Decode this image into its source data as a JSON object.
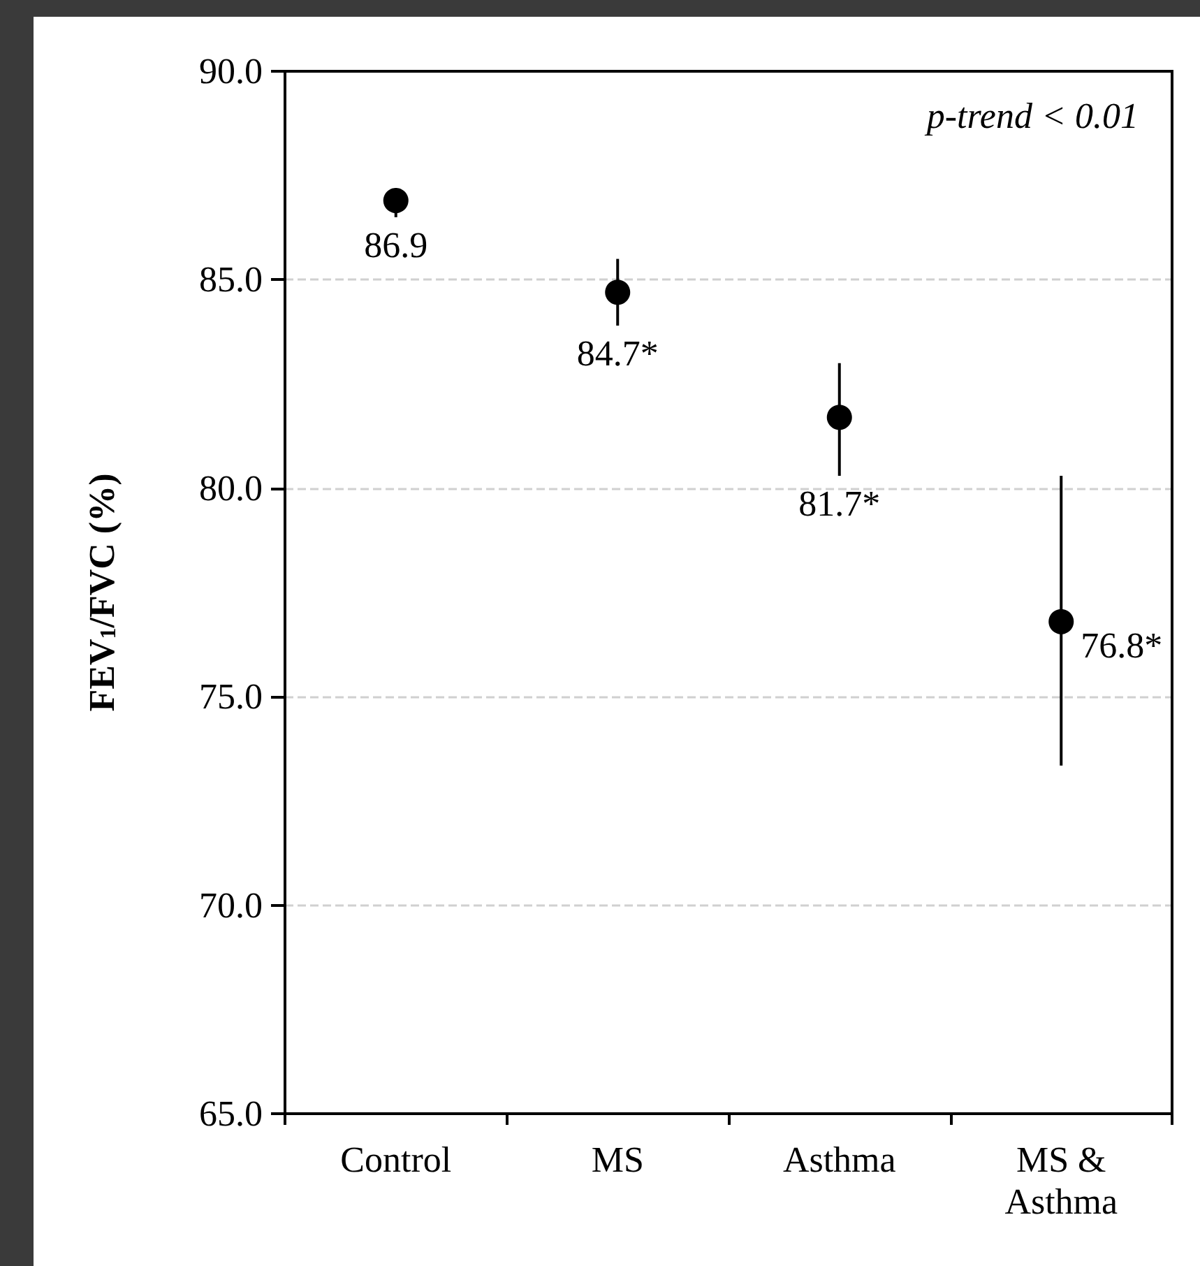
{
  "chart_data": {
    "type": "scatter",
    "ylabel": "FEV$_{1}$/FVC (%)",
    "categories": [
      "Control",
      "MS",
      "Asthma",
      "MS &\nAsthma"
    ],
    "values": [
      86.9,
      84.7,
      81.7,
      76.8
    ],
    "errors": [
      [
        86.5,
        87.2
      ],
      [
        83.9,
        85.5
      ],
      [
        80.3,
        83.0
      ],
      [
        73.35,
        80.3
      ]
    ],
    "value_labels": [
      "86.9",
      "84.7*",
      "81.7*",
      "76.8*"
    ],
    "color": "#000000",
    "marker": "circle",
    "ylim": [
      65,
      90
    ],
    "yticks": [
      {
        "value": 65,
        "label": "65.0"
      },
      {
        "value": 70,
        "label": "70.0"
      },
      {
        "value": 75,
        "label": "75.0"
      },
      {
        "value": 80,
        "label": "80.0"
      },
      {
        "value": 85,
        "label": "85.0"
      },
      {
        "value": 90,
        "label": "90.0"
      }
    ],
    "grid": "y",
    "annotations": [
      "p-trend < 0.01"
    ]
  }
}
